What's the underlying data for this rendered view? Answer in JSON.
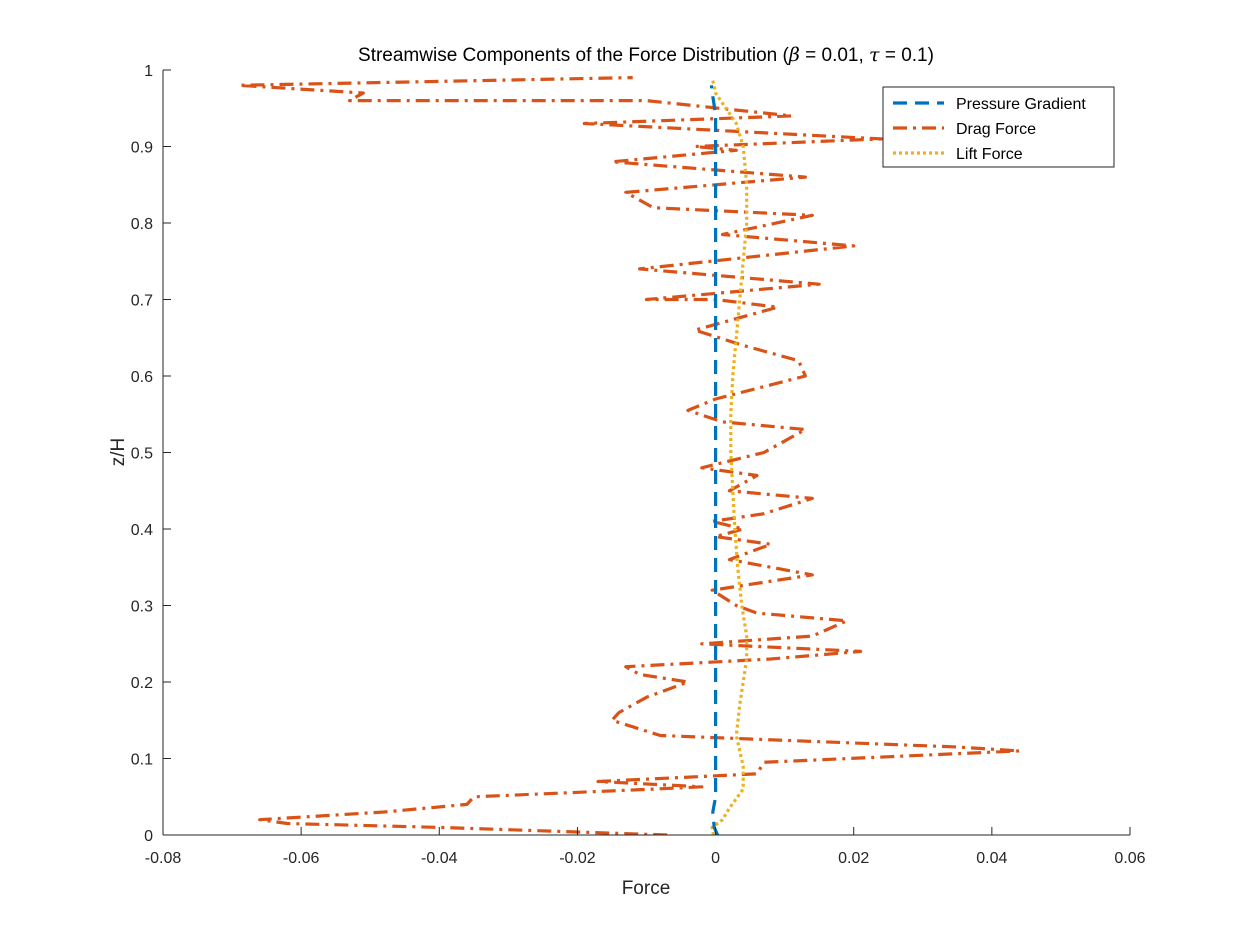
{
  "chart_data": {
    "type": "line",
    "title": {
      "prefix": "Streamwise Components of the Force Distribution (",
      "beta_symbol": "β",
      "beta_text": " = 0.01, ",
      "tau_symbol": "τ",
      "tau_text": " = 0.1)"
    },
    "xlabel": "Force",
    "ylabel": "z/H",
    "xlim": [
      -0.08,
      0.06
    ],
    "ylim": [
      0,
      1
    ],
    "xticks": [
      -0.08,
      -0.06,
      -0.04,
      -0.02,
      0,
      0.02,
      0.04,
      0.06
    ],
    "xtick_labels": [
      "-0.08",
      "-0.06",
      "-0.04",
      "-0.02",
      "0",
      "0.02",
      "0.04",
      "0.06"
    ],
    "yticks": [
      0,
      0.1,
      0.2,
      0.3,
      0.4,
      0.5,
      0.6,
      0.7,
      0.8,
      0.9,
      1
    ],
    "ytick_labels": [
      "0",
      "0.1",
      "0.2",
      "0.3",
      "0.4",
      "0.5",
      "0.6",
      "0.7",
      "0.8",
      "0.9",
      "1"
    ],
    "grid": false,
    "legend_position": "top-right",
    "series": [
      {
        "name": "Pressure Gradient",
        "color": "#0072BD",
        "style": "dashed",
        "points": [
          [
            0.0003,
            0.0
          ],
          [
            -0.0002,
            0.01
          ],
          [
            -0.0004,
            0.03
          ],
          [
            0.0,
            0.05
          ],
          [
            0.0,
            0.1
          ],
          [
            0.0,
            0.2
          ],
          [
            0.0,
            0.3
          ],
          [
            0.0,
            0.4
          ],
          [
            0.0,
            0.5
          ],
          [
            0.0,
            0.6
          ],
          [
            0.0,
            0.7
          ],
          [
            0.0,
            0.8
          ],
          [
            0.0,
            0.9
          ],
          [
            0.0,
            0.94
          ],
          [
            -0.0003,
            0.96
          ],
          [
            -0.0005,
            0.97
          ],
          [
            -0.0006,
            0.98
          ]
        ]
      },
      {
        "name": "Drag Force",
        "color": "#D95319",
        "style": "dashdot",
        "points": [
          [
            -0.007,
            0.0
          ],
          [
            -0.04,
            0.01
          ],
          [
            -0.062,
            0.015
          ],
          [
            -0.066,
            0.02
          ],
          [
            -0.048,
            0.03
          ],
          [
            -0.036,
            0.04
          ],
          [
            -0.035,
            0.05
          ],
          [
            -0.009,
            0.06
          ],
          [
            -0.002,
            0.063
          ],
          [
            -0.017,
            0.07
          ],
          [
            0.006,
            0.08
          ],
          [
            0.007,
            0.095
          ],
          [
            0.044,
            0.11
          ],
          [
            0.035,
            0.115
          ],
          [
            -0.008,
            0.13
          ],
          [
            -0.015,
            0.15
          ],
          [
            -0.014,
            0.16
          ],
          [
            -0.01,
            0.18
          ],
          [
            -0.004,
            0.2
          ],
          [
            -0.011,
            0.21
          ],
          [
            -0.013,
            0.22
          ],
          [
            0.008,
            0.23
          ],
          [
            0.021,
            0.24
          ],
          [
            -0.002,
            0.25
          ],
          [
            0.014,
            0.26
          ],
          [
            0.019,
            0.28
          ],
          [
            0.006,
            0.29
          ],
          [
            0.003,
            0.3
          ],
          [
            -0.0005,
            0.32
          ],
          [
            0.014,
            0.34
          ],
          [
            0.002,
            0.36
          ],
          [
            0.008,
            0.38
          ],
          [
            0.0,
            0.39
          ],
          [
            0.004,
            0.4
          ],
          [
            -0.0005,
            0.41
          ],
          [
            0.007,
            0.42
          ],
          [
            0.014,
            0.44
          ],
          [
            0.002,
            0.45
          ],
          [
            0.006,
            0.47
          ],
          [
            -0.002,
            0.48
          ],
          [
            0.007,
            0.5
          ],
          [
            0.013,
            0.53
          ],
          [
            0.001,
            0.54
          ],
          [
            -0.004,
            0.555
          ],
          [
            0.0,
            0.57
          ],
          [
            0.013,
            0.6
          ],
          [
            0.012,
            0.62
          ],
          [
            0.004,
            0.64
          ],
          [
            -0.003,
            0.66
          ],
          [
            0.009,
            0.69
          ],
          [
            0.0,
            0.7
          ],
          [
            -0.01,
            0.7
          ],
          [
            0.015,
            0.72
          ],
          [
            -0.011,
            0.74
          ],
          [
            0.02,
            0.77
          ],
          [
            0.001,
            0.785
          ],
          [
            0.014,
            0.81
          ],
          [
            -0.009,
            0.82
          ],
          [
            -0.013,
            0.84
          ],
          [
            0.013,
            0.86
          ],
          [
            -0.015,
            0.88
          ],
          [
            0.003,
            0.895
          ],
          [
            -0.003,
            0.9
          ],
          [
            0.024,
            0.91
          ],
          [
            -0.019,
            0.93
          ],
          [
            0.011,
            0.94
          ],
          [
            -0.01,
            0.96
          ],
          [
            -0.053,
            0.96
          ],
          [
            -0.051,
            0.97
          ],
          [
            -0.069,
            0.98
          ],
          [
            -0.012,
            0.99
          ]
        ]
      },
      {
        "name": "Lift Force",
        "color": "#EDB120",
        "style": "dotted",
        "points": [
          [
            -0.0003,
            0.0
          ],
          [
            -0.0005,
            0.01
          ],
          [
            0.001,
            0.02
          ],
          [
            0.002,
            0.035
          ],
          [
            0.004,
            0.06
          ],
          [
            0.004,
            0.09
          ],
          [
            0.003,
            0.13
          ],
          [
            0.0035,
            0.17
          ],
          [
            0.004,
            0.2
          ],
          [
            0.0045,
            0.23
          ],
          [
            0.0045,
            0.26
          ],
          [
            0.0038,
            0.3
          ],
          [
            0.0032,
            0.35
          ],
          [
            0.0028,
            0.4
          ],
          [
            0.0025,
            0.45
          ],
          [
            0.0022,
            0.5
          ],
          [
            0.0022,
            0.55
          ],
          [
            0.0025,
            0.6
          ],
          [
            0.003,
            0.65
          ],
          [
            0.0035,
            0.7
          ],
          [
            0.004,
            0.75
          ],
          [
            0.0045,
            0.8
          ],
          [
            0.0045,
            0.85
          ],
          [
            0.004,
            0.9
          ],
          [
            0.003,
            0.93
          ],
          [
            0.0015,
            0.95
          ],
          [
            0.0,
            0.97
          ],
          [
            -0.0005,
            0.99
          ]
        ]
      }
    ]
  }
}
